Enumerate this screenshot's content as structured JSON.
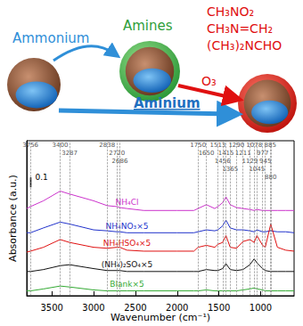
{
  "diagram": {
    "labels": [
      "Ammonium",
      "Amines",
      "Aminium",
      "O₃"
    ],
    "products": [
      "CH₃NO₂",
      "CH₃N=CH₂",
      "(CH₃)₂NCHO"
    ]
  },
  "chart_data": {
    "type": "line",
    "xlabel": "Wavenumber (cm⁻¹)",
    "ylabel": "Absorbance (a.u.)",
    "xlim": [
      3800,
      600
    ],
    "xticks": [
      3500,
      3000,
      2500,
      2000,
      1500,
      1000
    ],
    "ylim": [
      0,
      1.6
    ],
    "yticks": [],
    "tick_labels": "x",
    "grid": false,
    "scale_bar": 0.1,
    "peaks": [
      3756,
      3400,
      3287,
      2838,
      2720,
      2686,
      1750,
      1650,
      1513,
      1456,
      1415,
      1365,
      1290,
      1211,
      1129,
      1078,
      1045,
      977,
      945,
      885,
      880
    ],
    "x": [
      3800,
      3756,
      3600,
      3400,
      3287,
      3000,
      2838,
      2720,
      2686,
      2600,
      2400,
      2200,
      2000,
      1800,
      1750,
      1650,
      1550,
      1513,
      1456,
      1415,
      1365,
      1290,
      1211,
      1129,
      1078,
      1045,
      977,
      945,
      885,
      880,
      800,
      700,
      600
    ],
    "series": [
      {
        "name": "NH₄Cl",
        "color": "#cc33cc",
        "values": [
          0.9,
          0.92,
          0.98,
          1.08,
          1.05,
          0.98,
          0.93,
          0.92,
          0.91,
          0.9,
          0.88,
          0.88,
          0.88,
          0.88,
          0.9,
          0.94,
          0.9,
          0.92,
          0.96,
          1.02,
          0.94,
          0.91,
          0.9,
          0.89,
          0.88,
          0.89,
          0.88,
          0.88,
          0.88,
          0.88,
          0.88,
          0.88,
          0.88
        ]
      },
      {
        "name": "NH₄NO₃×5",
        "color": "#2233cc",
        "values": [
          0.65,
          0.65,
          0.7,
          0.76,
          0.74,
          0.68,
          0.67,
          0.66,
          0.66,
          0.65,
          0.65,
          0.65,
          0.65,
          0.65,
          0.66,
          0.68,
          0.67,
          0.68,
          0.72,
          0.78,
          0.7,
          0.68,
          0.68,
          0.67,
          0.66,
          0.68,
          0.66,
          0.66,
          0.67,
          0.67,
          0.66,
          0.66,
          0.65
        ]
      },
      {
        "name": "NH₄HSO₄×5",
        "color": "#e01010",
        "values": [
          0.45,
          0.46,
          0.5,
          0.58,
          0.55,
          0.5,
          0.49,
          0.5,
          0.5,
          0.47,
          0.46,
          0.46,
          0.46,
          0.46,
          0.5,
          0.52,
          0.5,
          0.53,
          0.55,
          0.62,
          0.5,
          0.49,
          0.56,
          0.58,
          0.55,
          0.62,
          0.52,
          0.5,
          0.72,
          0.74,
          0.5,
          0.47,
          0.46
        ]
      },
      {
        "name": "(NH₄)₂SO₄×5",
        "color": "#111111",
        "values": [
          0.25,
          0.25,
          0.27,
          0.31,
          0.32,
          0.28,
          0.26,
          0.26,
          0.26,
          0.25,
          0.25,
          0.25,
          0.25,
          0.25,
          0.25,
          0.27,
          0.26,
          0.26,
          0.28,
          0.33,
          0.27,
          0.26,
          0.27,
          0.32,
          0.38,
          0.34,
          0.28,
          0.26,
          0.25,
          0.25,
          0.25,
          0.25,
          0.25
        ]
      },
      {
        "name": "Blank×5",
        "color": "#33aa33",
        "values": [
          0.05,
          0.05,
          0.07,
          0.1,
          0.09,
          0.06,
          0.05,
          0.05,
          0.05,
          0.05,
          0.05,
          0.05,
          0.05,
          0.05,
          0.05,
          0.06,
          0.05,
          0.05,
          0.05,
          0.05,
          0.05,
          0.05,
          0.06,
          0.07,
          0.08,
          0.07,
          0.06,
          0.05,
          0.05,
          0.05,
          0.05,
          0.05,
          0.05
        ]
      }
    ]
  }
}
